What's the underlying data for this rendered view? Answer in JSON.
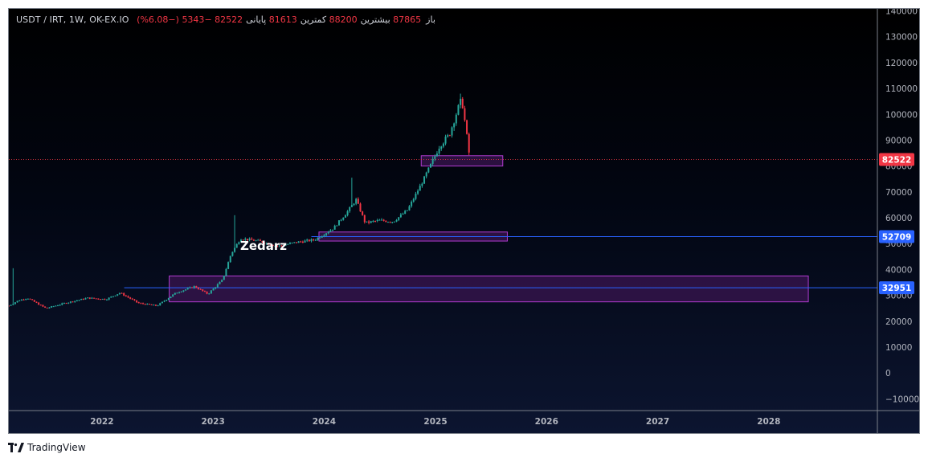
{
  "legend": {
    "symbol": "USDT / IRT, 1W, OK-EX.IO",
    "open_label": "باز",
    "open_value": "87865",
    "high_label": "بیشترین",
    "high_value": "88200",
    "low_label": "کمترین",
    "low_value": "81613",
    "close_label": "پایانی",
    "close_value": "82522",
    "change": "−5343 (−6.08%)"
  },
  "watermark": "Zedarz",
  "footer": {
    "brand": "TradingView",
    "logo_icon": "tradingview-logo-icon"
  },
  "colors": {
    "up": "#26a69a",
    "down": "#f23645",
    "zone_fill": "#3a1450",
    "zone_border": "#b23cd1",
    "hline": "#2962ff",
    "axis_text": "#b2b5be",
    "price_tag_last": "#f23645",
    "price_tag_line": "#2962ff"
  },
  "chart_data": {
    "type": "candlestick",
    "interval": "1W",
    "y_axis": {
      "min": -15000,
      "max": 140000,
      "ticks": [
        "140000",
        "130000",
        "120000",
        "110000",
        "100000",
        "90000",
        "80000",
        "70000",
        "60000",
        "50000",
        "40000",
        "30000",
        "20000",
        "10000",
        "0",
        "−10000"
      ]
    },
    "x_axis": {
      "range": [
        "2021-03-01",
        "2028-12-15"
      ],
      "ticks": [
        {
          "label": "2022",
          "date": "2022-01-01"
        },
        {
          "label": "2023",
          "date": "2023-01-01"
        },
        {
          "label": "2024",
          "date": "2024-01-01"
        },
        {
          "label": "2025",
          "date": "2025-01-01"
        },
        {
          "label": "2026",
          "date": "2026-01-01"
        },
        {
          "label": "2027",
          "date": "2027-01-01"
        },
        {
          "label": "2028",
          "date": "2028-01-01"
        }
      ]
    },
    "last_price": {
      "value": 82522,
      "label": "82522"
    },
    "horizontal_lines": [
      {
        "value": 52709,
        "label": "52709",
        "from": "2023-11-20"
      },
      {
        "value": 32951,
        "label": "32951",
        "from": "2022-03-15"
      }
    ],
    "zones": [
      {
        "from": "2024-11-15",
        "to": "2025-08-10",
        "top": 84000,
        "bottom": 80000
      },
      {
        "from": "2023-12-15",
        "to": "2025-08-25",
        "top": 54500,
        "bottom": 51000
      },
      {
        "from": "2022-08-10",
        "to": "2028-05-10",
        "top": 37500,
        "bottom": 27500
      }
    ],
    "price_path": [
      {
        "date": "2021-03-01",
        "price": 26000
      },
      {
        "date": "2021-04-01",
        "price": 28000
      },
      {
        "date": "2021-05-01",
        "price": 29000
      },
      {
        "date": "2021-07-01",
        "price": 25000
      },
      {
        "date": "2021-09-01",
        "price": 27000
      },
      {
        "date": "2021-11-15",
        "price": 29000
      },
      {
        "date": "2022-01-15",
        "price": 28500
      },
      {
        "date": "2022-03-01",
        "price": 31000
      },
      {
        "date": "2022-05-01",
        "price": 27000
      },
      {
        "date": "2022-07-01",
        "price": 26000
      },
      {
        "date": "2022-09-01",
        "price": 31000
      },
      {
        "date": "2022-11-01",
        "price": 33500
      },
      {
        "date": "2022-12-15",
        "price": 30500
      },
      {
        "date": "2023-02-01",
        "price": 36000
      },
      {
        "date": "2023-03-01",
        "price": 46000
      },
      {
        "date": "2023-04-01",
        "price": 52000
      },
      {
        "date": "2023-06-01",
        "price": 51000
      },
      {
        "date": "2023-08-01",
        "price": 49000
      },
      {
        "date": "2023-10-01",
        "price": 50500
      },
      {
        "date": "2023-12-01",
        "price": 51500
      },
      {
        "date": "2024-02-01",
        "price": 56000
      },
      {
        "date": "2024-03-15",
        "price": 62000
      },
      {
        "date": "2024-04-15",
        "price": 67000
      },
      {
        "date": "2024-05-15",
        "price": 58000
      },
      {
        "date": "2024-07-01",
        "price": 59000
      },
      {
        "date": "2024-08-15",
        "price": 58500
      },
      {
        "date": "2024-10-01",
        "price": 63000
      },
      {
        "date": "2024-11-15",
        "price": 73000
      },
      {
        "date": "2024-12-15",
        "price": 80000
      },
      {
        "date": "2025-01-15",
        "price": 88000
      },
      {
        "date": "2025-02-15",
        "price": 92000
      },
      {
        "date": "2025-03-15",
        "price": 102000
      },
      {
        "date": "2025-03-28",
        "price": 106000
      },
      {
        "date": "2025-04-10",
        "price": 95000
      },
      {
        "date": "2025-04-24",
        "price": 82522
      }
    ],
    "spikes": [
      {
        "date": "2021-03-15",
        "high": 40500
      },
      {
        "date": "2023-03-15",
        "high": 61000
      },
      {
        "date": "2024-04-01",
        "high": 75500
      },
      {
        "date": "2025-03-25",
        "high": 108000
      }
    ]
  }
}
